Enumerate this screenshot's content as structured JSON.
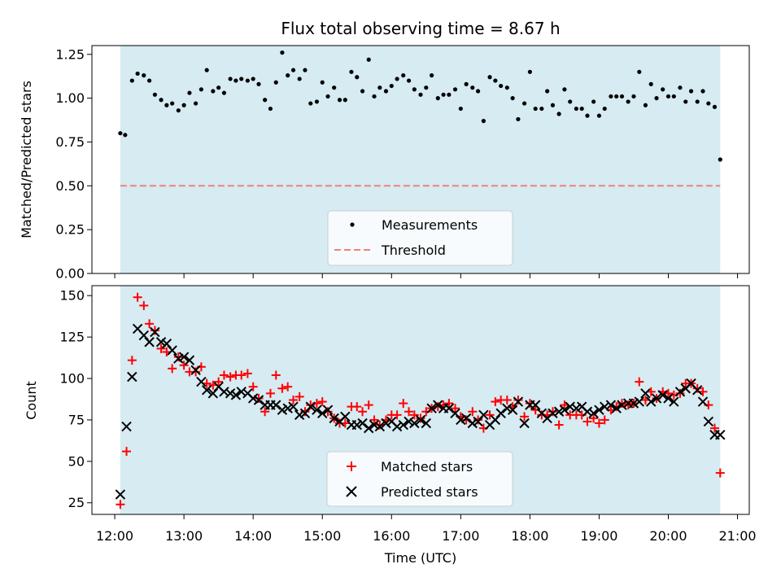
{
  "chart_data": [
    {
      "type": "scatter",
      "title": "Flux total observing time = 8.67 h",
      "ylabel": "Matched/Predicted stars",
      "xlabel": "",
      "xlim": [
        11.67,
        21.17
      ],
      "ylim": [
        0.0,
        1.3
      ],
      "yticks": [
        0.0,
        0.25,
        0.5,
        0.75,
        1.0,
        1.25
      ],
      "ytick_labels": [
        "0.00",
        "0.25",
        "0.50",
        "0.75",
        "1.00",
        "1.25"
      ],
      "shaded_span": [
        12.08,
        20.75
      ],
      "threshold": 0.5,
      "legend": [
        "Measurements",
        "Threshold"
      ],
      "legend_position": "lower center",
      "colors": {
        "measurements": "#000000",
        "threshold": "#f08080",
        "shade": "#add8e6"
      },
      "series": [
        {
          "name": "Measurements",
          "x": [
            12.08,
            12.15,
            12.25,
            12.33,
            12.42,
            12.5,
            12.58,
            12.67,
            12.75,
            12.83,
            12.92,
            13.0,
            13.08,
            13.17,
            13.25,
            13.33,
            13.42,
            13.5,
            13.58,
            13.67,
            13.75,
            13.83,
            13.92,
            14.0,
            14.08,
            14.17,
            14.25,
            14.33,
            14.42,
            14.5,
            14.58,
            14.67,
            14.75,
            14.83,
            14.92,
            15.0,
            15.08,
            15.17,
            15.25,
            15.33,
            15.42,
            15.5,
            15.58,
            15.67,
            15.75,
            15.83,
            15.92,
            16.0,
            16.08,
            16.17,
            16.25,
            16.33,
            16.42,
            16.5,
            16.58,
            16.67,
            16.75,
            16.83,
            16.92,
            17.0,
            17.08,
            17.17,
            17.25,
            17.33,
            17.42,
            17.5,
            17.58,
            17.67,
            17.75,
            17.83,
            17.92,
            18.0,
            18.08,
            18.17,
            18.25,
            18.33,
            18.42,
            18.5,
            18.58,
            18.67,
            18.75,
            18.83,
            18.92,
            19.0,
            19.08,
            19.17,
            19.25,
            19.33,
            19.42,
            19.5,
            19.58,
            19.67,
            19.75,
            19.83,
            19.92,
            20.0,
            20.08,
            20.17,
            20.25,
            20.33,
            20.42,
            20.5,
            20.58,
            20.67,
            20.75
          ],
          "y": [
            0.8,
            0.79,
            1.1,
            1.14,
            1.13,
            1.1,
            1.02,
            0.99,
            0.96,
            0.97,
            0.93,
            0.96,
            1.03,
            0.97,
            1.05,
            1.16,
            1.04,
            1.06,
            1.03,
            1.11,
            1.1,
            1.11,
            1.1,
            1.11,
            1.08,
            0.99,
            0.94,
            1.09,
            1.26,
            1.13,
            1.16,
            1.11,
            1.16,
            0.97,
            0.98,
            1.09,
            1.01,
            1.06,
            0.99,
            0.99,
            1.15,
            1.12,
            1.04,
            1.22,
            1.01,
            1.06,
            1.04,
            1.07,
            1.11,
            1.13,
            1.1,
            1.05,
            1.02,
            1.06,
            1.13,
            1.0,
            1.02,
            1.02,
            1.05,
            0.94,
            1.08,
            1.06,
            1.04,
            0.87,
            1.12,
            1.1,
            1.07,
            1.06,
            1.0,
            0.88,
            0.97,
            1.15,
            0.94,
            0.94,
            1.04,
            0.96,
            0.91,
            1.05,
            0.98,
            0.94,
            0.94,
            0.9,
            0.98,
            0.9,
            0.94,
            1.01,
            1.01,
            1.01,
            0.98,
            1.01,
            1.15,
            0.96,
            1.08,
            1.0,
            1.05,
            1.01,
            1.01,
            1.06,
            0.98,
            1.04,
            0.98,
            1.04,
            0.97,
            0.95,
            0.65
          ]
        }
      ]
    },
    {
      "type": "scatter",
      "xlabel": "Time (UTC)",
      "ylabel": "Count",
      "xlim": [
        11.67,
        21.17
      ],
      "ylim": [
        18,
        156
      ],
      "xticks": [
        12,
        13,
        14,
        15,
        16,
        17,
        18,
        19,
        20,
        21
      ],
      "xtick_labels": [
        "12:00",
        "13:00",
        "14:00",
        "15:00",
        "16:00",
        "17:00",
        "18:00",
        "19:00",
        "20:00",
        "21:00"
      ],
      "yticks": [
        25,
        50,
        75,
        100,
        125,
        150
      ],
      "ytick_labels": [
        "25",
        "50",
        "75",
        "100",
        "125",
        "150"
      ],
      "shaded_span": [
        12.08,
        20.75
      ],
      "legend": [
        "Matched stars",
        "Predicted stars"
      ],
      "legend_position": "lower center",
      "colors": {
        "matched": "#ff0000",
        "predicted": "#000000",
        "shade": "#add8e6"
      },
      "series": [
        {
          "name": "Matched stars",
          "x": [
            12.08,
            12.17,
            12.25,
            12.33,
            12.42,
            12.5,
            12.58,
            12.67,
            12.75,
            12.83,
            12.92,
            13.0,
            13.08,
            13.17,
            13.25,
            13.33,
            13.42,
            13.5,
            13.58,
            13.67,
            13.75,
            13.83,
            13.92,
            14.0,
            14.08,
            14.17,
            14.25,
            14.33,
            14.42,
            14.5,
            14.58,
            14.67,
            14.75,
            14.83,
            14.92,
            15.0,
            15.08,
            15.17,
            15.25,
            15.33,
            15.42,
            15.5,
            15.58,
            15.67,
            15.75,
            15.83,
            15.92,
            16.0,
            16.08,
            16.17,
            16.25,
            16.33,
            16.42,
            16.5,
            16.58,
            16.67,
            16.75,
            16.83,
            16.92,
            17.0,
            17.08,
            17.17,
            17.25,
            17.33,
            17.42,
            17.5,
            17.58,
            17.67,
            17.75,
            17.83,
            17.92,
            18.0,
            18.08,
            18.17,
            18.25,
            18.33,
            18.42,
            18.5,
            18.58,
            18.67,
            18.75,
            18.83,
            18.92,
            19.0,
            19.08,
            19.17,
            19.25,
            19.33,
            19.42,
            19.5,
            19.58,
            19.67,
            19.75,
            19.83,
            19.92,
            20.0,
            20.08,
            20.17,
            20.25,
            20.33,
            20.42,
            20.5,
            20.58,
            20.67,
            20.75
          ],
          "y": [
            24,
            56,
            111,
            149,
            144,
            133,
            129,
            118,
            116,
            106,
            113,
            108,
            104,
            104,
            107,
            97,
            96,
            98,
            102,
            101,
            102,
            102,
            103,
            95,
            88,
            80,
            91,
            102,
            94,
            95,
            87,
            89,
            80,
            84,
            85,
            86,
            80,
            76,
            73,
            73,
            83,
            83,
            80,
            84,
            75,
            72,
            75,
            78,
            78,
            85,
            80,
            78,
            76,
            80,
            82,
            83,
            84,
            85,
            82,
            77,
            75,
            80,
            75,
            70,
            78,
            86,
            87,
            87,
            83,
            87,
            77,
            85,
            81,
            78,
            78,
            80,
            72,
            84,
            78,
            78,
            78,
            74,
            76,
            73,
            75,
            81,
            83,
            85,
            84,
            85,
            98,
            87,
            92,
            88,
            92,
            91,
            90,
            91,
            97,
            97,
            94,
            92,
            84,
            70,
            43
          ]
        },
        {
          "name": "Predicted stars",
          "x": [
            12.08,
            12.17,
            12.25,
            12.33,
            12.42,
            12.5,
            12.58,
            12.67,
            12.75,
            12.83,
            12.92,
            13.0,
            13.08,
            13.17,
            13.25,
            13.33,
            13.42,
            13.5,
            13.58,
            13.67,
            13.75,
            13.83,
            13.92,
            14.0,
            14.08,
            14.17,
            14.25,
            14.33,
            14.42,
            14.5,
            14.58,
            14.67,
            14.75,
            14.83,
            14.92,
            15.0,
            15.08,
            15.17,
            15.25,
            15.33,
            15.42,
            15.5,
            15.58,
            15.67,
            15.75,
            15.83,
            15.92,
            16.0,
            16.08,
            16.17,
            16.25,
            16.33,
            16.42,
            16.5,
            16.58,
            16.67,
            16.75,
            16.83,
            16.92,
            17.0,
            17.08,
            17.17,
            17.25,
            17.33,
            17.42,
            17.5,
            17.58,
            17.67,
            17.75,
            17.83,
            17.92,
            18.0,
            18.08,
            18.17,
            18.25,
            18.33,
            18.42,
            18.5,
            18.58,
            18.67,
            18.75,
            18.83,
            18.92,
            19.0,
            19.08,
            19.17,
            19.25,
            19.33,
            19.42,
            19.5,
            19.58,
            19.67,
            19.75,
            19.83,
            19.92,
            20.0,
            20.08,
            20.17,
            20.25,
            20.33,
            20.42,
            20.5,
            20.58,
            20.67,
            20.75
          ],
          "y": [
            30,
            71,
            101,
            130,
            126,
            122,
            128,
            122,
            121,
            117,
            112,
            113,
            111,
            105,
            98,
            93,
            91,
            95,
            92,
            91,
            90,
            92,
            91,
            88,
            87,
            84,
            84,
            84,
            81,
            82,
            83,
            78,
            79,
            83,
            81,
            79,
            81,
            76,
            74,
            77,
            72,
            72,
            73,
            70,
            72,
            71,
            73,
            74,
            71,
            72,
            74,
            73,
            75,
            73,
            82,
            84,
            82,
            82,
            79,
            75,
            76,
            73,
            74,
            78,
            72,
            75,
            79,
            82,
            81,
            86,
            73,
            84,
            84,
            79,
            76,
            79,
            80,
            81,
            83,
            82,
            83,
            80,
            79,
            81,
            83,
            84,
            82,
            84,
            85,
            85,
            86,
            91,
            86,
            88,
            90,
            88,
            86,
            92,
            94,
            97,
            93,
            86,
            74,
            66,
            66
          ]
        }
      ]
    }
  ]
}
